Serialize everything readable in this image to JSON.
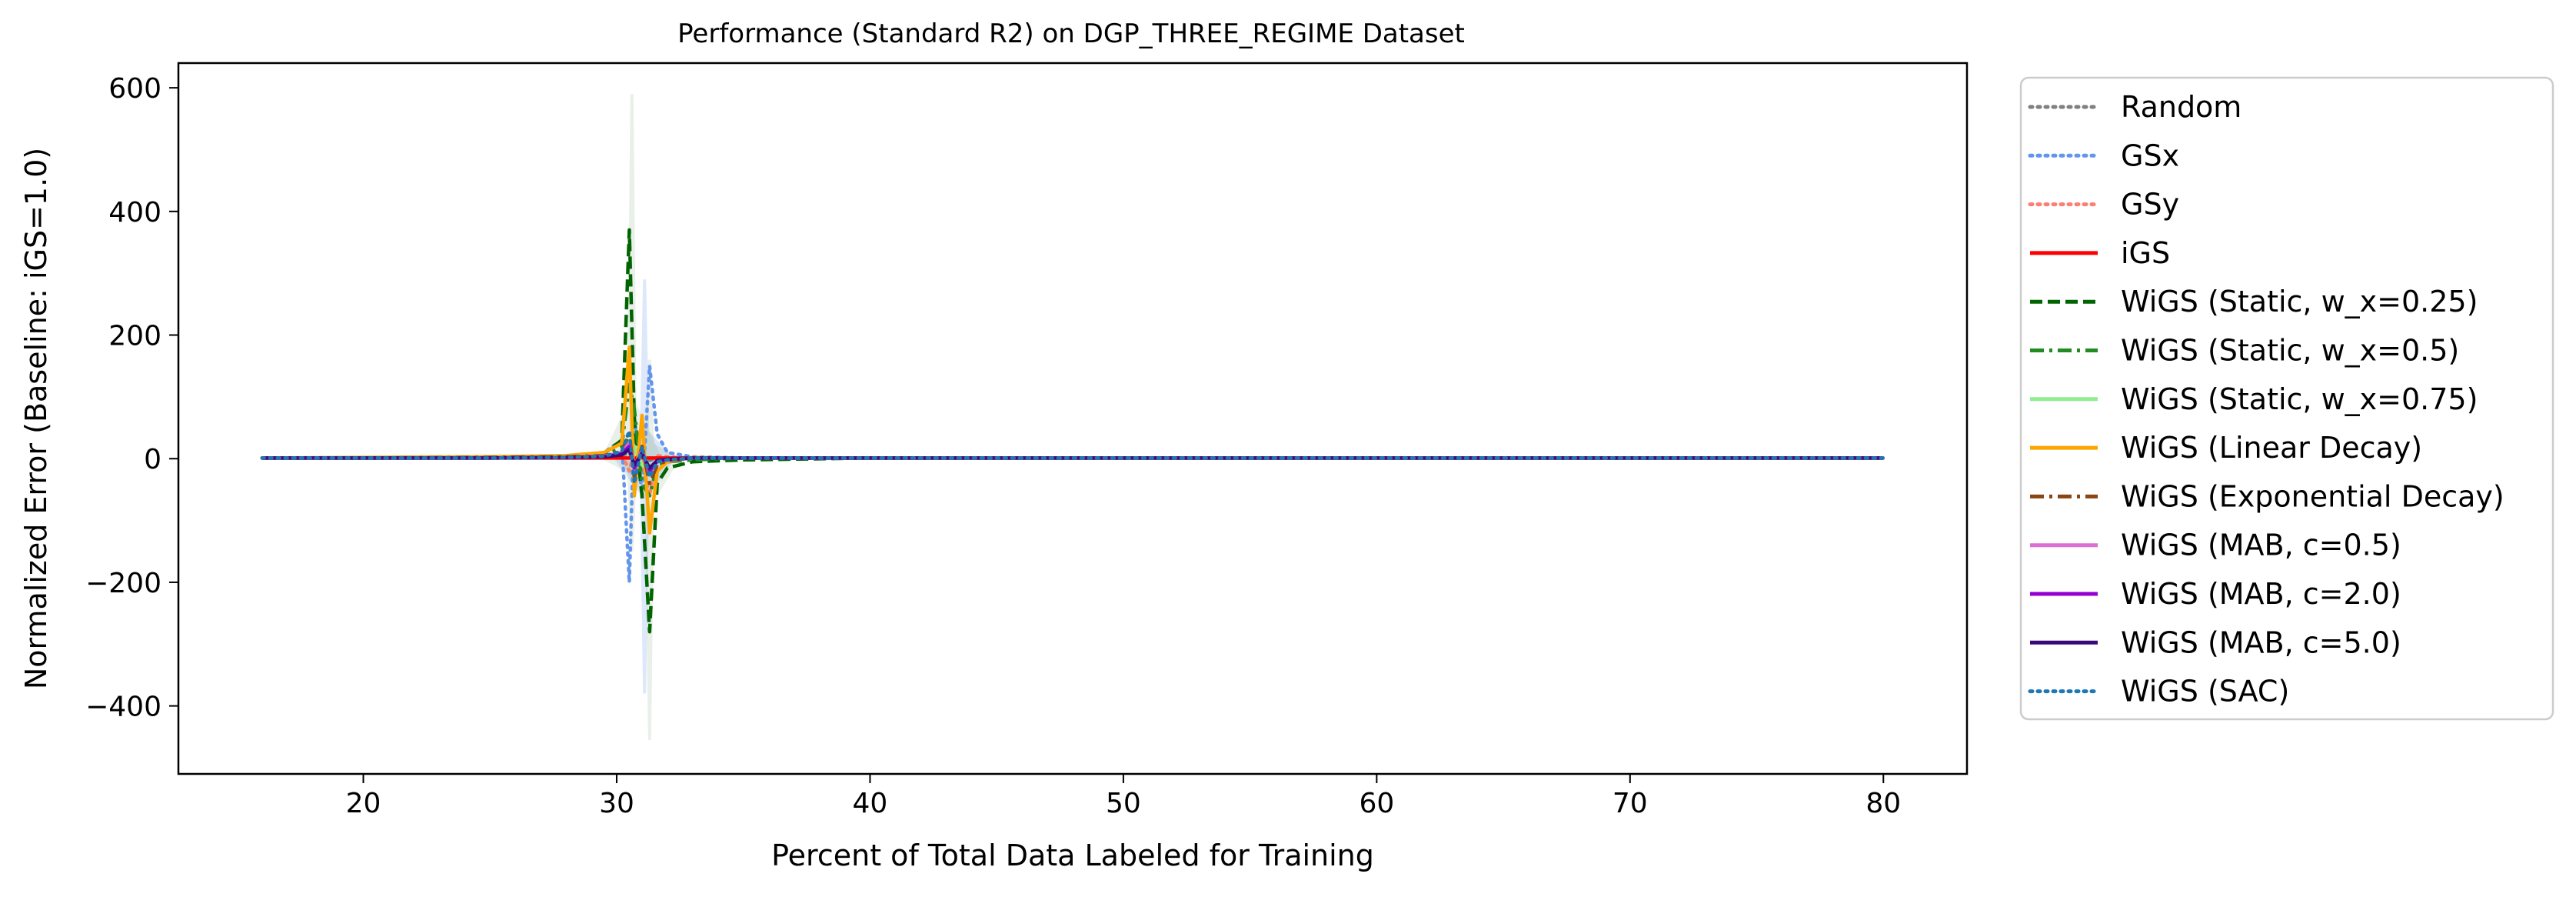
{
  "chart_data": {
    "type": "line",
    "title": "Performance (Standard R2) on DGP_THREE_REGIME Dataset",
    "xlabel": "Percent of Total Data Labeled for Training",
    "ylabel": "Normalized Error (Baseline: iGS=1.0)",
    "xlim": [
      12.7,
      83.3
    ],
    "ylim": [
      -510,
      640
    ],
    "xticks": [
      20,
      30,
      40,
      50,
      60,
      70,
      80
    ],
    "yticks": [
      -400,
      -200,
      0,
      200,
      400,
      600
    ],
    "grid": false,
    "legend_position": "outside-right",
    "x": [
      16,
      20,
      25,
      28,
      29.5,
      30.2,
      30.5,
      30.7,
      31.0,
      31.3,
      31.6,
      32,
      33,
      35,
      40,
      50,
      60,
      70,
      80
    ],
    "series": [
      {
        "name": "Random",
        "color": "#808080",
        "dash": "dotted",
        "y": [
          1,
          1,
          1,
          2,
          3,
          5,
          10,
          -8,
          4,
          -3,
          2,
          1,
          1,
          1,
          1,
          1,
          1,
          1,
          1
        ]
      },
      {
        "name": "GSx",
        "color": "#6495ED",
        "dash": "dotted",
        "y": [
          1,
          1,
          2,
          3,
          10,
          30,
          -200,
          70,
          -60,
          150,
          40,
          10,
          3,
          1,
          1,
          1,
          1,
          1,
          1
        ]
      },
      {
        "name": "GSy",
        "color": "#FA8072",
        "dash": "dotted",
        "y": [
          1,
          1,
          1,
          2,
          4,
          8,
          -20,
          15,
          -5,
          -60,
          5,
          3,
          1,
          1,
          1,
          1,
          1,
          1,
          1
        ]
      },
      {
        "name": "iGS",
        "color": "#FF0000",
        "dash": "solid",
        "y": [
          1,
          1,
          1,
          1,
          1,
          1,
          1,
          1,
          1,
          1,
          1,
          1,
          1,
          1,
          1,
          1,
          1,
          1,
          1
        ]
      },
      {
        "name": "WiGS (Static, w_x=0.25)",
        "color": "#006400",
        "dash": "dashed",
        "y": [
          1,
          1,
          2,
          4,
          8,
          30,
          370,
          60,
          -60,
          -280,
          -40,
          -15,
          -5,
          -2,
          1,
          1,
          1,
          1,
          1
        ]
      },
      {
        "name": "WiGS (Static, w_x=0.5)",
        "color": "#228B22",
        "dash": "dashdot",
        "y": [
          1,
          1,
          2,
          3,
          6,
          20,
          120,
          80,
          -40,
          -60,
          -10,
          -5,
          -2,
          1,
          1,
          1,
          1,
          1,
          1
        ]
      },
      {
        "name": "WiGS (Static, w_x=0.75)",
        "color": "#90EE90",
        "dash": "solid",
        "y": [
          1,
          1,
          1,
          2,
          3,
          10,
          30,
          20,
          -10,
          -20,
          -5,
          -2,
          1,
          1,
          1,
          1,
          1,
          1,
          1
        ]
      },
      {
        "name": "WiGS (Linear Decay)",
        "color": "#FFA500",
        "dash": "solid",
        "y": [
          1,
          2,
          3,
          5,
          10,
          25,
          180,
          -60,
          70,
          -120,
          -20,
          -5,
          2,
          1,
          1,
          1,
          1,
          1,
          1
        ]
      },
      {
        "name": "WiGS (Exponential Decay)",
        "color": "#8B4513",
        "dash": "dashdot",
        "y": [
          1,
          1,
          2,
          3,
          5,
          12,
          40,
          -30,
          20,
          -40,
          -10,
          -3,
          1,
          1,
          1,
          1,
          1,
          1,
          1
        ]
      },
      {
        "name": "WiGS (MAB, c=0.5)",
        "color": "#DA70D6",
        "dash": "solid",
        "y": [
          1,
          1,
          1,
          2,
          4,
          10,
          25,
          -20,
          15,
          -25,
          -5,
          -2,
          1,
          1,
          1,
          1,
          1,
          1,
          1
        ]
      },
      {
        "name": "WiGS (MAB, c=2.0)",
        "color": "#9400D3",
        "dash": "solid",
        "y": [
          1,
          1,
          1,
          2,
          3,
          8,
          20,
          -15,
          10,
          -20,
          -4,
          -2,
          1,
          1,
          1,
          1,
          1,
          1,
          1
        ]
      },
      {
        "name": "WiGS (MAB, c=5.0)",
        "color": "#3B0A7A",
        "dash": "solid",
        "y": [
          1,
          1,
          1,
          2,
          3,
          6,
          15,
          -10,
          8,
          -15,
          -3,
          -1,
          1,
          1,
          1,
          1,
          1,
          1,
          1
        ]
      },
      {
        "name": "WiGS (SAC)",
        "color": "#1F77B4",
        "dash": "dotted",
        "y": [
          1,
          1,
          1,
          2,
          4,
          12,
          45,
          -40,
          20,
          -30,
          -5,
          -2,
          1,
          1,
          1,
          1,
          1,
          1,
          1
        ]
      }
    ],
    "bands": [
      {
        "color": "#6495ED",
        "center": 31.1,
        "low": -380,
        "high": 290
      },
      {
        "color": "#9DB89B",
        "center": 30.6,
        "low": -150,
        "high": 590
      },
      {
        "color": "#9DB89B",
        "center": 31.3,
        "low": -455,
        "high": 160
      }
    ]
  }
}
